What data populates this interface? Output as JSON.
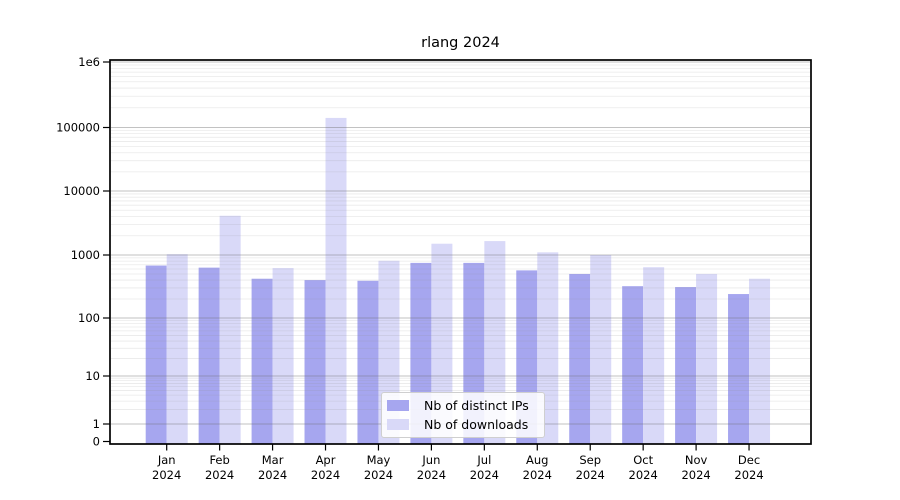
{
  "figure": {
    "background": "#ffffff"
  },
  "chart_data": {
    "type": "bar",
    "title": "rlang 2024",
    "categories": [
      "Jan",
      "Feb",
      "Mar",
      "Apr",
      "May",
      "Jun",
      "Jul",
      "Aug",
      "Sep",
      "Oct",
      "Nov",
      "Dec"
    ],
    "category_year": "2024",
    "series": [
      {
        "name": "Nb of distinct IPs",
        "color": "#a6a6ef",
        "values": [
          680,
          630,
          420,
          400,
          390,
          750,
          750,
          570,
          500,
          320,
          310,
          240
        ]
      },
      {
        "name": "Nb of downloads",
        "color": "#d9d9f8",
        "values": [
          1030,
          4100,
          620,
          140000,
          810,
          1500,
          1650,
          1100,
          1000,
          640,
          500,
          420
        ]
      }
    ],
    "xlabel": "",
    "ylabel": "",
    "yscale": "symlog",
    "ylim": [
      0,
      1000000
    ],
    "yticks": [
      {
        "value": 0,
        "label": "0"
      },
      {
        "value": 1,
        "label": "1"
      },
      {
        "value": 10,
        "label": "10"
      },
      {
        "value": 100,
        "label": "100"
      },
      {
        "value": 1000,
        "label": "1000"
      },
      {
        "value": 10000,
        "label": "10000"
      },
      {
        "value": 100000,
        "label": "100000"
      },
      {
        "value": 1000000,
        "label": "1e6"
      }
    ],
    "grid": {
      "major": true,
      "minor": true
    },
    "legend": {
      "position": "lower center"
    }
  }
}
